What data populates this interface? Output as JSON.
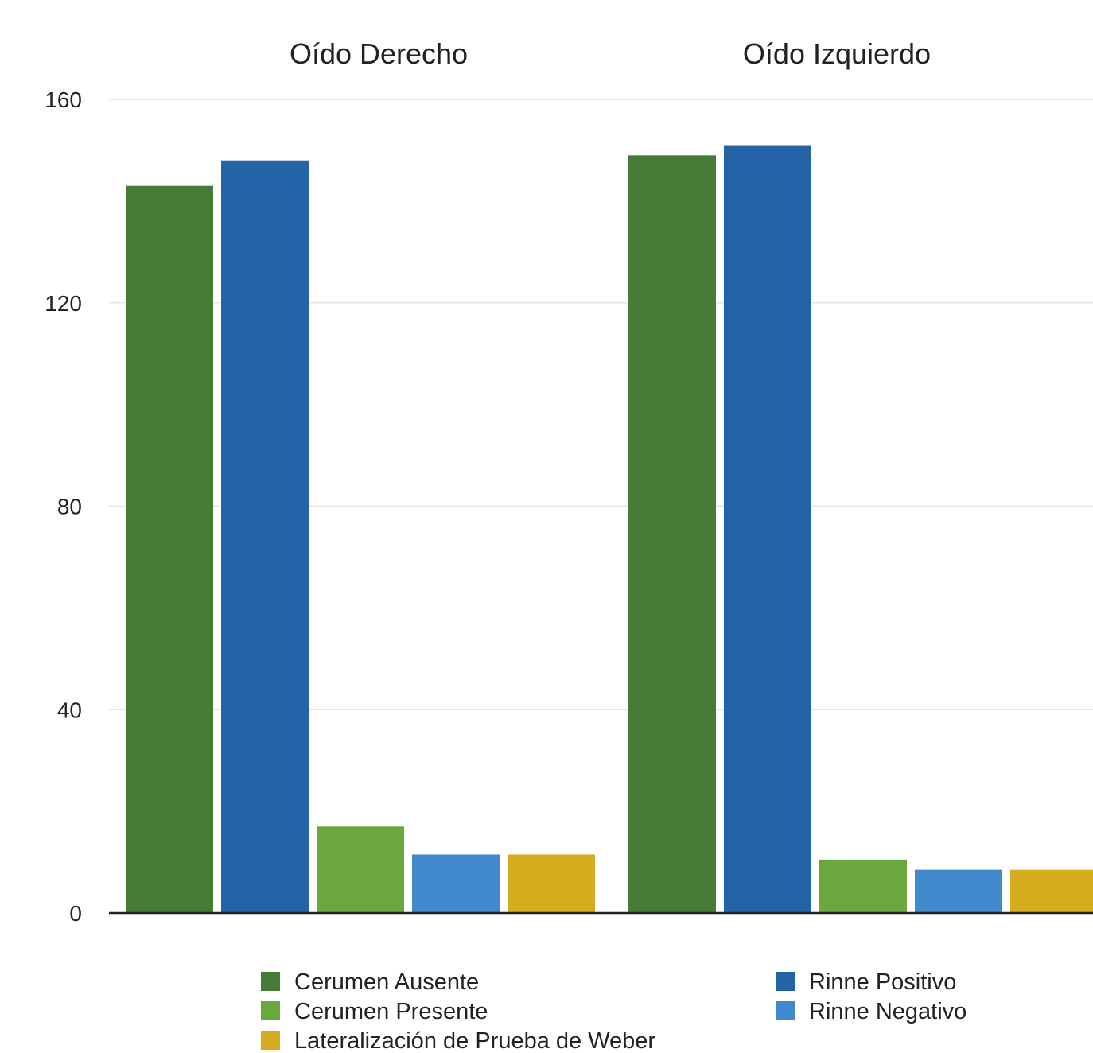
{
  "chart_data": {
    "type": "bar",
    "categories": [
      "Oído Derecho",
      "Oído Izquierdo"
    ],
    "series": [
      {
        "name": "Cerumen Ausente",
        "color": "#467b35",
        "values": [
          143,
          149
        ]
      },
      {
        "name": "Rinne Positivo",
        "color": "#2463a6",
        "values": [
          148,
          151
        ]
      },
      {
        "name": "Cerumen Presente",
        "color": "#6aa73c",
        "values": [
          17,
          10.5
        ]
      },
      {
        "name": "Rinne Negativo",
        "color": "#4189cc",
        "values": [
          11.5,
          8.5
        ]
      },
      {
        "name": "Lateralización de Prueba de Weber",
        "color": "#d6ac1f",
        "values": [
          11.5,
          8.5
        ]
      }
    ],
    "yticks": [
      0,
      40,
      80,
      120,
      160
    ],
    "ylim": [
      0,
      160
    ],
    "grid": true,
    "legend_position": "bottom",
    "legend_order": [
      0,
      1,
      2,
      3,
      4
    ]
  }
}
